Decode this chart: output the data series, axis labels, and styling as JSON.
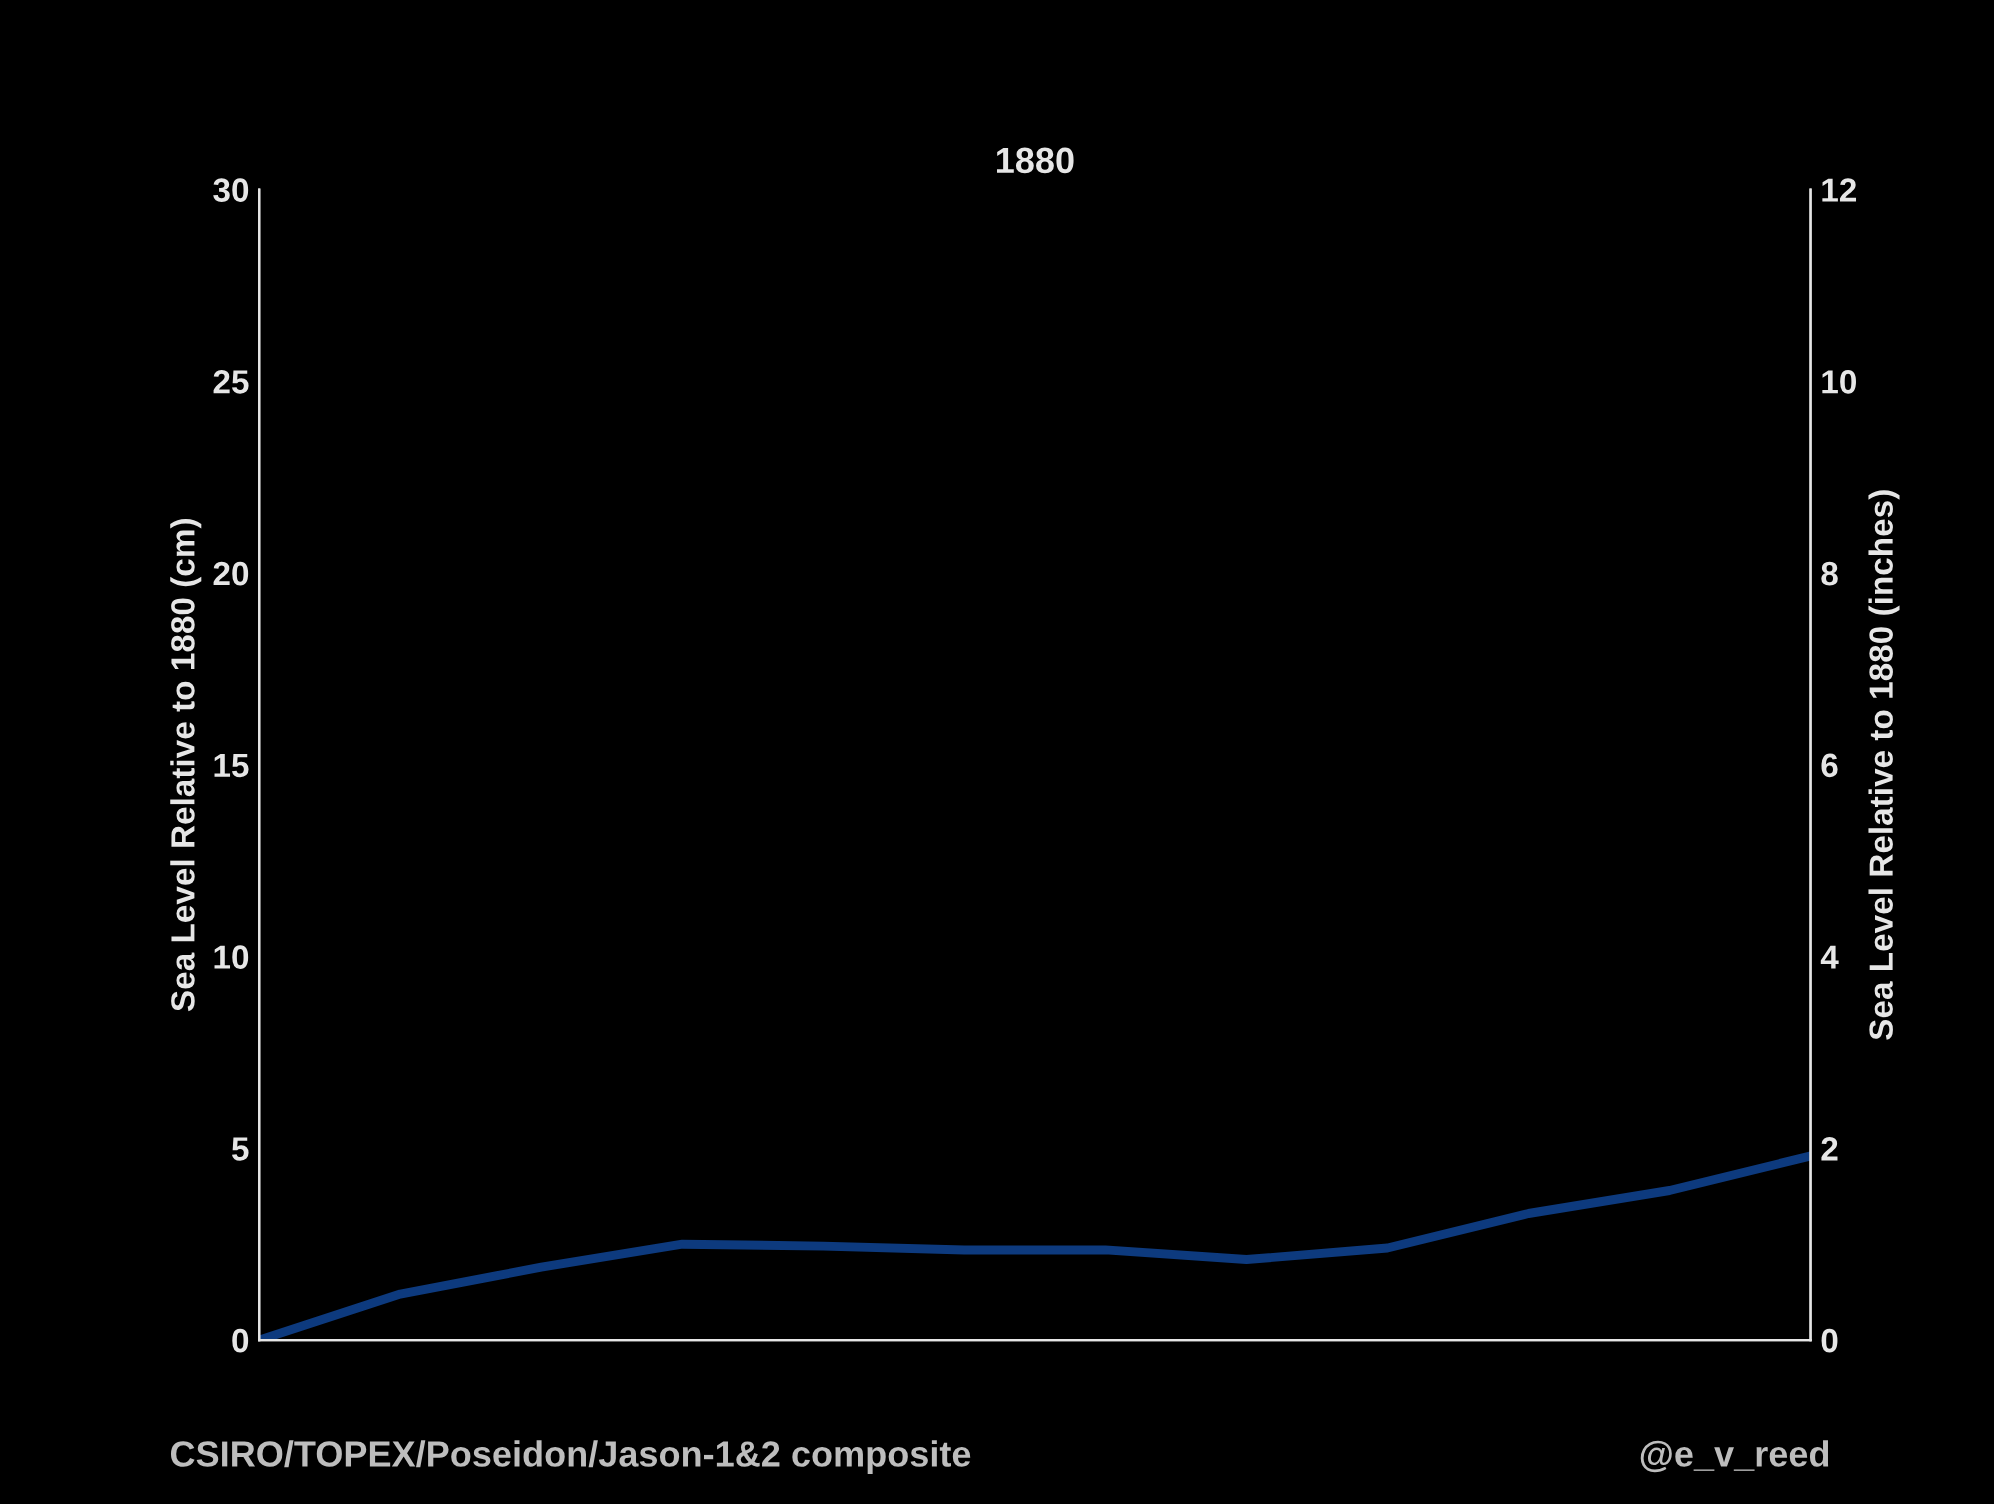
{
  "chart_data": {
    "type": "line",
    "title": "1880",
    "ylabel": "Sea Level Relative to 1880 (cm)",
    "y2label": "Sea Level Relative to 1880 (inches)",
    "categories": [
      null,
      null,
      null,
      null,
      null,
      null,
      null,
      null,
      null,
      null,
      null,
      null
    ],
    "series": [
      {
        "color": "#0d3a7e",
        "values": [
          0,
          1.2,
          1.9,
          2.5,
          2.45,
          2.35,
          2.35,
          2.1,
          2.4,
          3.3,
          3.9,
          4.8
        ]
      }
    ],
    "ylim": [
      0,
      30
    ],
    "yticks": [
      0,
      5,
      10,
      15,
      20,
      25,
      30
    ],
    "y2lim": [
      0,
      12
    ],
    "y2ticks": [
      0,
      2,
      4,
      6,
      8,
      10,
      12
    ],
    "grid": false,
    "legend": false,
    "marker": "none",
    "line_style": "solid",
    "annotations": [
      "CSIRO/TOPEX/Poseidon/Jason-1&2 composite",
      "@e_v_reed"
    ]
  }
}
